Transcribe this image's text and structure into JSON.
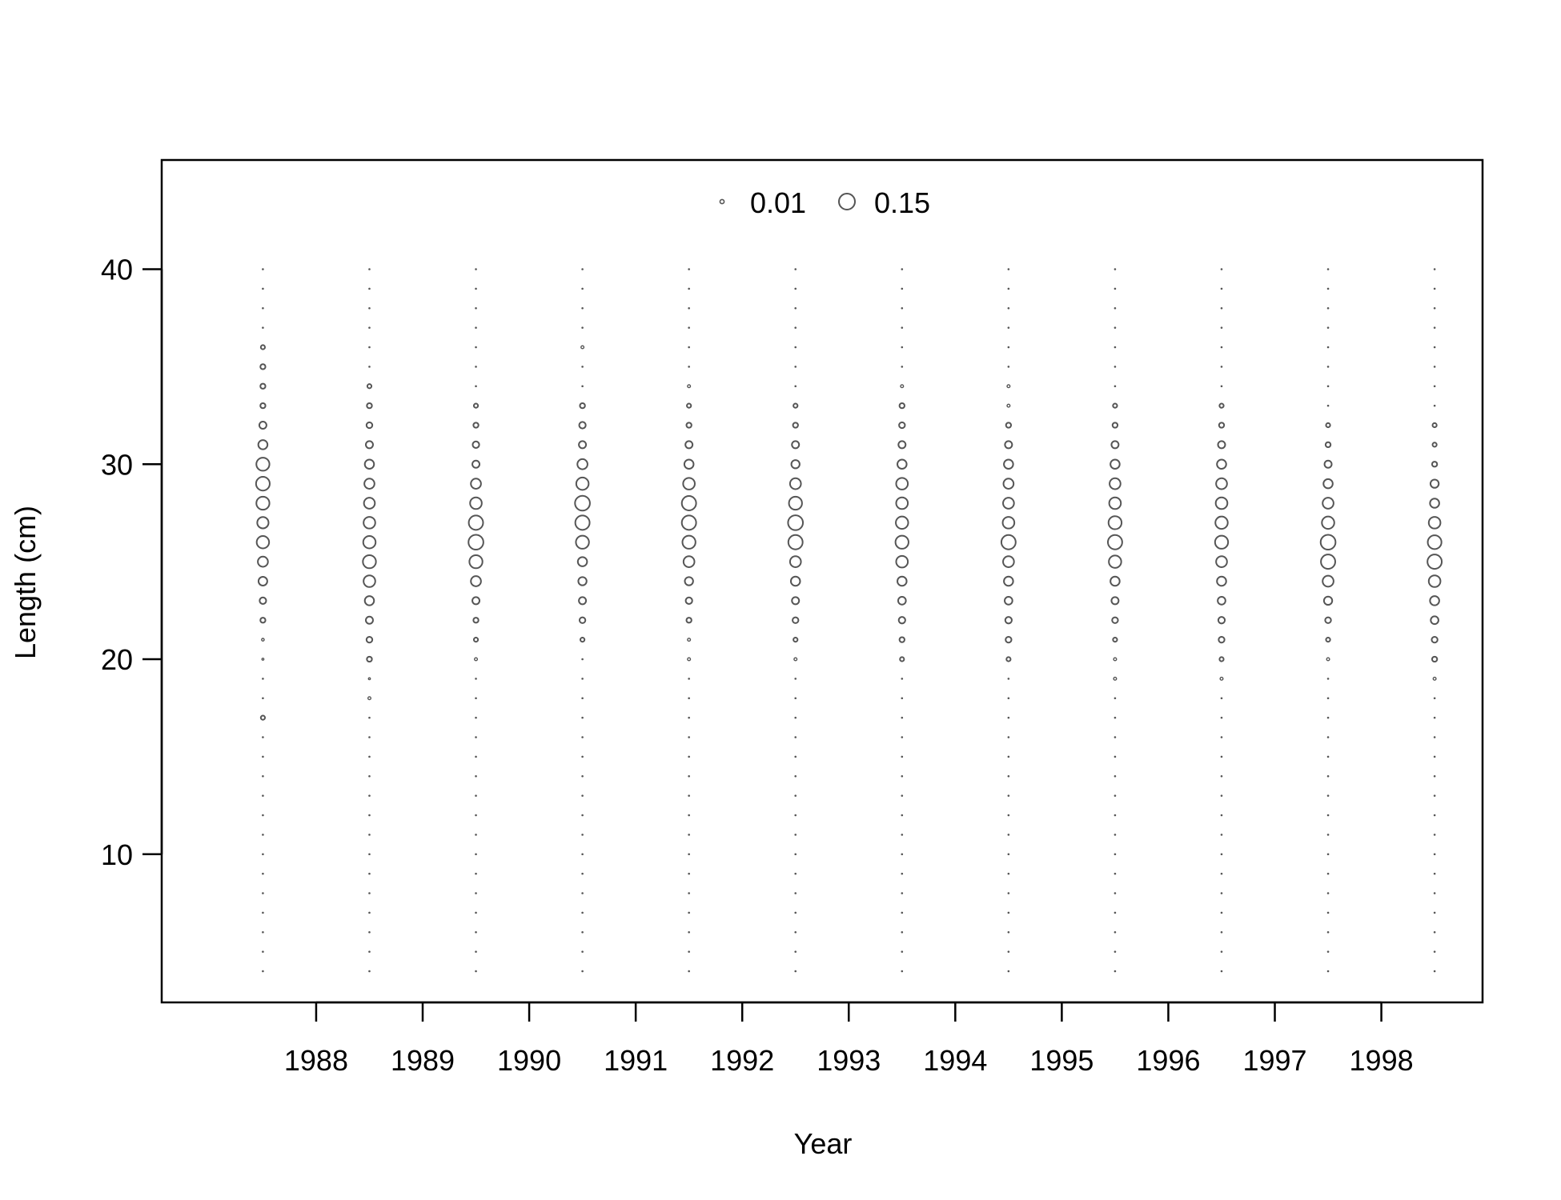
{
  "chart_data": {
    "type": "scatter",
    "subtype": "bubble",
    "title": "",
    "xlabel": "Year",
    "ylabel": "Length (cm)",
    "x_ticks": [
      "1988",
      "1989",
      "1990",
      "1991",
      "1992",
      "1993",
      "1994",
      "1995",
      "1996",
      "1997",
      "1998"
    ],
    "y_ticks": [
      "10",
      "20",
      "30",
      "40"
    ],
    "xlim": [
      1986.55,
      1998.95
    ],
    "ylim": [
      2.4,
      45.6
    ],
    "grid": false,
    "legend": {
      "placement": "top-center",
      "entries": [
        {
          "label": "0.01",
          "value": 0.01
        },
        {
          "label": "0.15",
          "value": 0.15
        }
      ]
    },
    "lengths": [
      4,
      5,
      6,
      7,
      8,
      9,
      10,
      11,
      12,
      13,
      14,
      15,
      16,
      17,
      18,
      19,
      20,
      21,
      22,
      23,
      24,
      25,
      26,
      27,
      28,
      29,
      30,
      31,
      32,
      33,
      34,
      35,
      36,
      37,
      38,
      39,
      40
    ],
    "series": [
      {
        "year": 1987.5,
        "proportions": {
          "17": 0.01,
          "20": 0.002,
          "21": 0.004,
          "22": 0.015,
          "23": 0.025,
          "24": 0.045,
          "25": 0.06,
          "26": 0.09,
          "27": 0.075,
          "28": 0.1,
          "29": 0.11,
          "30": 0.1,
          "31": 0.05,
          "32": 0.03,
          "33": 0.015,
          "34": 0.015,
          "35": 0.015,
          "36": 0.01
        }
      },
      {
        "year": 1988.5,
        "proportions": {
          "18": 0.005,
          "19": 0.002,
          "20": 0.015,
          "21": 0.02,
          "22": 0.03,
          "23": 0.05,
          "24": 0.08,
          "25": 0.1,
          "26": 0.09,
          "27": 0.08,
          "28": 0.07,
          "29": 0.06,
          "30": 0.05,
          "31": 0.03,
          "32": 0.02,
          "33": 0.015,
          "34": 0.01
        }
      },
      {
        "year": 1989.5,
        "proportions": {
          "20": 0.005,
          "21": 0.01,
          "22": 0.015,
          "23": 0.03,
          "24": 0.06,
          "25": 0.1,
          "26": 0.13,
          "27": 0.12,
          "28": 0.08,
          "29": 0.06,
          "30": 0.03,
          "31": 0.025,
          "32": 0.015,
          "33": 0.01
        }
      },
      {
        "year": 1990.5,
        "proportions": {
          "21": 0.01,
          "22": 0.02,
          "23": 0.03,
          "24": 0.04,
          "25": 0.05,
          "26": 0.1,
          "27": 0.12,
          "28": 0.13,
          "29": 0.09,
          "30": 0.06,
          "31": 0.03,
          "32": 0.025,
          "33": 0.015,
          "36": 0.005
        }
      },
      {
        "year": 1991.5,
        "proportions": {
          "20": 0.005,
          "21": 0.005,
          "22": 0.015,
          "23": 0.025,
          "24": 0.04,
          "25": 0.07,
          "26": 0.1,
          "27": 0.12,
          "28": 0.12,
          "29": 0.08,
          "30": 0.05,
          "31": 0.03,
          "32": 0.015,
          "33": 0.01,
          "34": 0.005
        }
      },
      {
        "year": 1992.5,
        "proportions": {
          "20": 0.005,
          "21": 0.01,
          "22": 0.02,
          "23": 0.03,
          "24": 0.05,
          "25": 0.07,
          "26": 0.12,
          "27": 0.13,
          "28": 0.1,
          "29": 0.07,
          "30": 0.04,
          "31": 0.03,
          "32": 0.015,
          "33": 0.01
        }
      },
      {
        "year": 1993.5,
        "proportions": {
          "20": 0.01,
          "21": 0.015,
          "22": 0.025,
          "23": 0.035,
          "24": 0.05,
          "25": 0.08,
          "26": 0.1,
          "27": 0.09,
          "28": 0.08,
          "29": 0.08,
          "30": 0.05,
          "31": 0.03,
          "32": 0.02,
          "33": 0.015,
          "34": 0.005
        }
      },
      {
        "year": 1994.5,
        "proportions": {
          "20": 0.01,
          "21": 0.02,
          "22": 0.025,
          "23": 0.035,
          "24": 0.05,
          "25": 0.07,
          "26": 0.12,
          "27": 0.08,
          "28": 0.07,
          "29": 0.06,
          "30": 0.05,
          "31": 0.03,
          "32": 0.015,
          "33": 0.005,
          "34": 0.005
        }
      },
      {
        "year": 1995.5,
        "proportions": {
          "19": 0.005,
          "20": 0.005,
          "21": 0.01,
          "22": 0.02,
          "23": 0.03,
          "24": 0.05,
          "25": 0.09,
          "26": 0.12,
          "27": 0.1,
          "28": 0.08,
          "29": 0.07,
          "30": 0.05,
          "31": 0.03,
          "32": 0.015,
          "33": 0.01
        }
      },
      {
        "year": 1996.5,
        "proportions": {
          "19": 0.005,
          "20": 0.01,
          "21": 0.02,
          "22": 0.025,
          "23": 0.035,
          "24": 0.05,
          "25": 0.07,
          "26": 0.1,
          "27": 0.09,
          "28": 0.08,
          "29": 0.07,
          "30": 0.05,
          "31": 0.03,
          "32": 0.015,
          "33": 0.01
        }
      },
      {
        "year": 1997.5,
        "proportions": {
          "20": 0.005,
          "21": 0.01,
          "22": 0.02,
          "23": 0.04,
          "24": 0.07,
          "25": 0.12,
          "26": 0.13,
          "27": 0.09,
          "28": 0.07,
          "29": 0.05,
          "30": 0.03,
          "31": 0.015,
          "32": 0.01
        }
      },
      {
        "year": 1998.5,
        "proportions": {
          "19": 0.005,
          "20": 0.015,
          "21": 0.02,
          "22": 0.035,
          "23": 0.05,
          "24": 0.08,
          "25": 0.12,
          "26": 0.11,
          "27": 0.08,
          "28": 0.05,
          "29": 0.04,
          "30": 0.015,
          "31": 0.01,
          "32": 0.01
        }
      }
    ]
  }
}
